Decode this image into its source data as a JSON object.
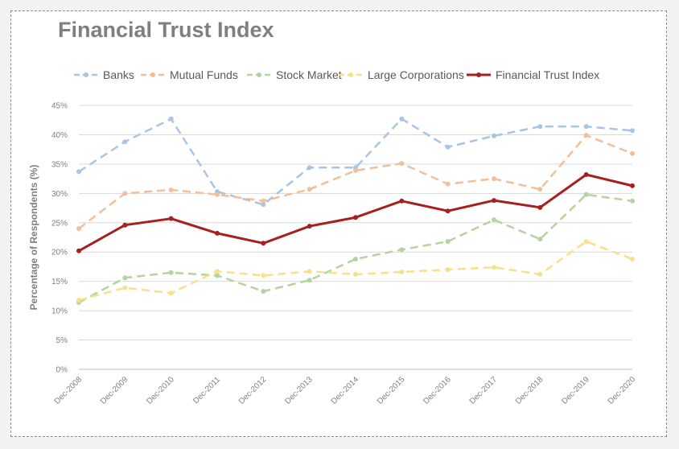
{
  "chart_data": {
    "type": "line",
    "title": "Financial Trust Index",
    "ylabel": "Percentage of Respondents (%)",
    "xlabel": "",
    "ylim": [
      0,
      45
    ],
    "yticks": [
      "0%",
      "5%",
      "10%",
      "15%",
      "20%",
      "25%",
      "30%",
      "35%",
      "40%",
      "45%"
    ],
    "categories": [
      "Dec-2008",
      "Dec-2009",
      "Dec-2010",
      "Dec-2011",
      "Dec-2012",
      "Dec-2013",
      "Dec-2014",
      "Dec-2015",
      "Dec-2016",
      "Dec-2017",
      "Dec-2018",
      "Dec-2019",
      "Dec-2020"
    ],
    "grid": "horizontal",
    "legend": "top",
    "series": [
      {
        "name": "Banks",
        "color": "#a9c4e4",
        "dashed": true,
        "values": [
          33.7,
          38.8,
          42.7,
          30.3,
          28.1,
          34.4,
          34.4,
          42.7,
          37.9,
          39.8,
          41.4,
          41.4,
          40.7
        ]
      },
      {
        "name": "Mutual Funds",
        "color": "#f0bf9c",
        "dashed": true,
        "values": [
          24.0,
          30.0,
          30.6,
          29.8,
          28.7,
          30.7,
          33.9,
          35.1,
          31.6,
          32.5,
          30.7,
          39.9,
          36.8
        ]
      },
      {
        "name": "Stock Market",
        "color": "#b5d3a0",
        "dashed": true,
        "values": [
          11.4,
          15.6,
          16.5,
          16.0,
          13.3,
          15.2,
          18.8,
          20.4,
          21.8,
          25.5,
          22.2,
          29.8,
          28.7
        ]
      },
      {
        "name": "Large Corporations",
        "color": "#f8e08a",
        "dashed": true,
        "values": [
          11.8,
          13.9,
          13.0,
          16.7,
          16.0,
          16.7,
          16.2,
          16.6,
          17.0,
          17.4,
          16.2,
          21.8,
          18.8
        ]
      },
      {
        "name": "Financial Trust Index",
        "color": "#a5201e",
        "dashed": false,
        "values": [
          20.2,
          24.6,
          25.7,
          23.2,
          21.5,
          24.4,
          25.9,
          28.7,
          27.0,
          28.8,
          27.6,
          33.2,
          31.3
        ]
      }
    ]
  }
}
